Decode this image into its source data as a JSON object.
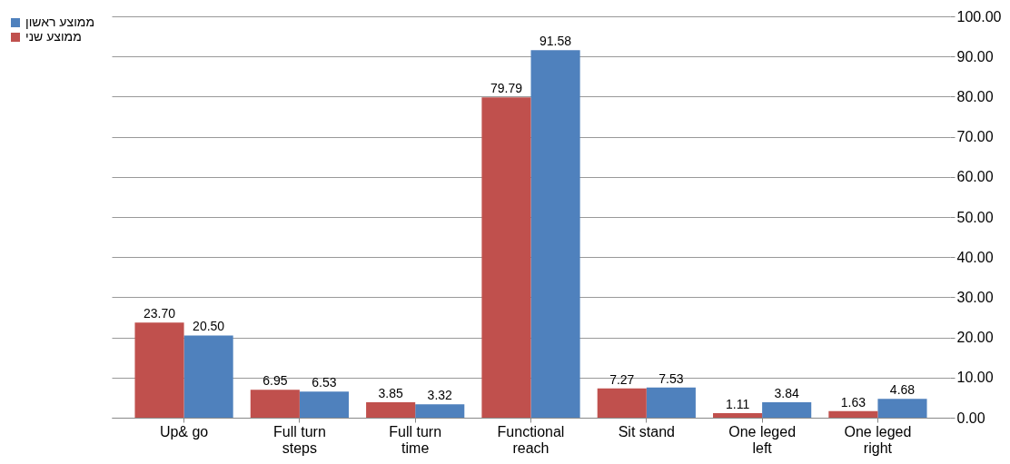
{
  "chart_data": {
    "type": "bar",
    "categories": [
      "Up& go",
      "Full turn\nsteps",
      "Full turn\ntime",
      "Functional\nreach",
      "Sit stand",
      "One leged\nleft",
      "One leged\nright"
    ],
    "series": [
      {
        "name": "ממוצע ראשון",
        "color": "#4f81bd",
        "values": [
          20.5,
          6.53,
          3.32,
          91.58,
          7.53,
          3.84,
          4.68
        ],
        "value_labels": [
          "20.50",
          "6.53",
          "3.32",
          "91.58",
          "7.53",
          "3.84",
          "4.68"
        ]
      },
      {
        "name": "ממוצע שני",
        "color": "#c0504d",
        "values": [
          23.7,
          6.95,
          3.85,
          79.79,
          7.27,
          1.11,
          1.63
        ],
        "value_labels": [
          "23.70",
          "6.95",
          "3.85",
          "79.79",
          "7.27",
          "1.11",
          "1.63"
        ]
      }
    ],
    "ylim": [
      0,
      100
    ],
    "yticks": [
      {
        "value": 0,
        "label": "0.00"
      },
      {
        "value": 10,
        "label": "10.00"
      },
      {
        "value": 20,
        "label": "20.00"
      },
      {
        "value": 30,
        "label": "30.00"
      },
      {
        "value": 40,
        "label": "40.00"
      },
      {
        "value": 50,
        "label": "50.00"
      },
      {
        "value": 60,
        "label": "60.00"
      },
      {
        "value": 70,
        "label": "70.00"
      },
      {
        "value": 80,
        "label": "80.00"
      },
      {
        "value": 90,
        "label": "90.00"
      },
      {
        "value": 100,
        "label": "100.00"
      }
    ],
    "grid": "y",
    "legend": "left"
  }
}
